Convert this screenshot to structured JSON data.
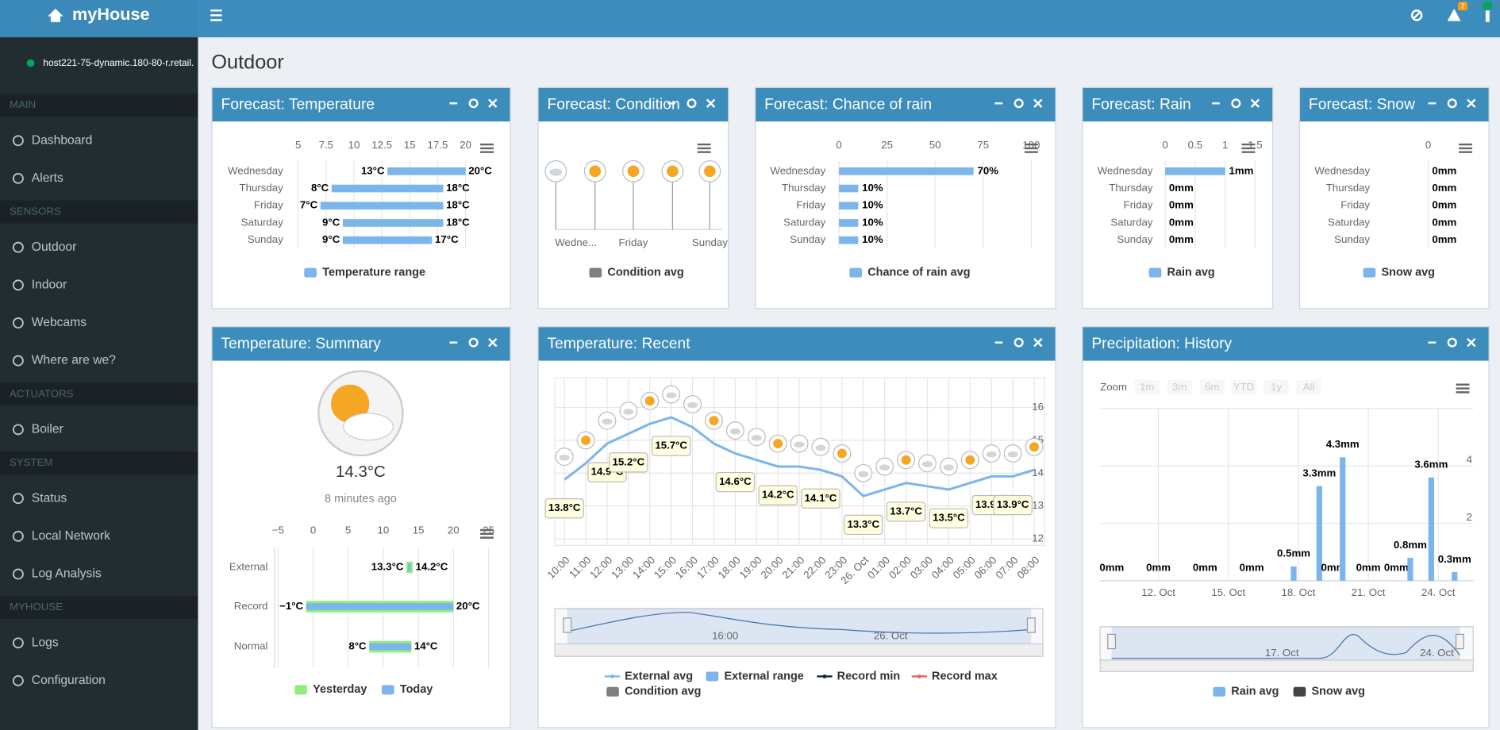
{
  "header": {
    "brand": "myHouse",
    "badge": "7"
  },
  "sidebar": {
    "host": "host221-75-dynamic.180-80-r.retail.",
    "sections": [
      {
        "label": "MAIN",
        "items": [
          "Dashboard",
          "Alerts"
        ]
      },
      {
        "label": "SENSORS",
        "items": [
          "Outdoor",
          "Indoor",
          "Webcams",
          "Where are we?"
        ]
      },
      {
        "label": "ACTUATORS",
        "items": [
          "Boiler"
        ]
      },
      {
        "label": "SYSTEM",
        "items": [
          "Status",
          "Local Network",
          "Log Analysis"
        ]
      },
      {
        "label": "MYHOUSE",
        "items": [
          "Logs",
          "Configuration"
        ]
      }
    ]
  },
  "page": {
    "title": "Outdoor"
  },
  "widgets": [
    {
      "title": "Forecast: Temperature",
      "chart_data": {
        "type": "range-bar",
        "categories": [
          "Wednesday",
          "Thursday",
          "Friday",
          "Saturday",
          "Sunday"
        ],
        "series": [
          {
            "name": "Temperature range",
            "color": "#7cb5ec",
            "low": [
              13,
              8,
              7,
              9,
              9
            ],
            "high": [
              20,
              18,
              18,
              18,
              17
            ],
            "low_labels": [
              "13°C",
              "8°C",
              "7°C",
              "9°C",
              "9°C"
            ],
            "high_labels": [
              "20°C",
              "18°C",
              "18°C",
              "18°C",
              "17°C"
            ]
          }
        ],
        "xlim": [
          4,
          22
        ],
        "xticks": [
          5,
          7.5,
          10,
          12.5,
          15,
          17.5,
          20
        ]
      }
    },
    {
      "title": "Forecast: Condition",
      "chart_data": {
        "type": "condition",
        "categories": [
          "Wedne...",
          null,
          "Friday",
          null,
          "Sunday"
        ],
        "series": [
          {
            "name": "Condition avg",
            "color": "#808080"
          }
        ]
      }
    },
    {
      "title": "Forecast: Chance of rain",
      "chart_data": {
        "type": "bar",
        "categories": [
          "Wednesday",
          "Thursday",
          "Friday",
          "Saturday",
          "Sunday"
        ],
        "series": [
          {
            "name": "Chance of rain avg",
            "color": "#7cb5ec",
            "values": [
              70,
              10,
              10,
              10,
              10
            ],
            "value_labels": [
              "70%",
              "10%",
              "10%",
              "10%",
              "10%"
            ]
          }
        ],
        "xlim": [
          0,
          100
        ],
        "xticks": [
          0,
          25,
          50,
          75,
          100
        ]
      }
    },
    {
      "title": "Forecast: Rain",
      "chart_data": {
        "type": "bar",
        "categories": [
          "Wednesday",
          "Thursday",
          "Friday",
          "Saturday",
          "Sunday"
        ],
        "series": [
          {
            "name": "Rain avg",
            "color": "#7cb5ec",
            "values": [
              1,
              0,
              0,
              0,
              0
            ],
            "value_labels": [
              "1mm",
              "0mm",
              "0mm",
              "0mm",
              "0mm"
            ]
          }
        ],
        "xlim": [
          0,
          1.5
        ],
        "xticks": [
          0,
          0.5,
          1,
          1.5
        ]
      }
    },
    {
      "title": "Forecast: Snow",
      "chart_data": {
        "type": "bar",
        "categories": [
          "Wednesday",
          "Thursday",
          "Friday",
          "Saturday",
          "Sunday"
        ],
        "series": [
          {
            "name": "Snow avg",
            "color": "#7cb5ec",
            "values": [
              0,
              0,
              0,
              0,
              0
            ],
            "value_labels": [
              "0mm",
              "0mm",
              "0mm",
              "0mm",
              "0mm"
            ]
          }
        ],
        "xlim": [
          -1,
          1
        ],
        "xticks": [
          0
        ]
      }
    },
    {
      "title": "Temperature: Summary",
      "current": "14.3°C",
      "updated": "8 minutes ago",
      "chart_data": {
        "type": "range-bar",
        "categories": [
          "External",
          "Record",
          "Normal"
        ],
        "series": [
          {
            "name": "Yesterday",
            "color": "#90ed7d",
            "low": [
              13.3,
              -1,
              8
            ],
            "high": [
              14.2,
              20,
              14
            ],
            "low_labels": [
              "13.3°C",
              "−1°C",
              "8°C"
            ],
            "high_labels": [
              "14.2°C",
              "20°C",
              "14°C"
            ]
          },
          {
            "name": "Today",
            "color": "#7cb5ec",
            "low": [
              13.5,
              -1,
              8
            ],
            "high": [
              13.9,
              20,
              14
            ]
          }
        ],
        "xlim": [
          -5.5,
          25.6
        ],
        "xticks": [
          {
            "value": -5,
            "label": "−5"
          },
          0,
          5,
          10,
          15,
          20,
          25
        ]
      }
    },
    {
      "title": "Temperature: Recent",
      "chart_data": {
        "type": "line",
        "categories": [
          "10:00",
          "11:00",
          "12:00",
          "13:00",
          "14:00",
          "15:00",
          "16:00",
          "17:00",
          "18:00",
          "19:00",
          "20:00",
          "21:00",
          "22:00",
          "23:00",
          "26. Oct",
          "01:00",
          "02:00",
          "03:00",
          "04:00",
          "05:00",
          "06:00",
          "07:00",
          "08:00"
        ],
        "series": [
          {
            "name": "External avg",
            "style": "line",
            "color": "#7cb5ec",
            "values": [
              13.8,
              14.3,
              14.9,
              15.2,
              15.5,
              15.7,
              15.4,
              14.9,
              14.6,
              14.4,
              14.2,
              14.2,
              14.1,
              13.9,
              13.3,
              13.5,
              13.7,
              13.6,
              13.5,
              13.7,
              13.9,
              13.9,
              14.1
            ],
            "value_labels": [
              "13.8°C",
              null,
              "14.9°C",
              "15.2°C",
              null,
              "15.7°C",
              null,
              null,
              "14.6°C",
              null,
              "14.2°C",
              null,
              "14.1°C",
              null,
              "13.3°C",
              null,
              "13.7°C",
              null,
              "13.5°C",
              null,
              "13.9°C",
              "13.9°C",
              null
            ]
          },
          {
            "name": "External range",
            "style": "area",
            "color": "#7cb5ec"
          },
          {
            "name": "Record min",
            "style": "line",
            "color": "#0d233a"
          },
          {
            "name": "Record max",
            "style": "line",
            "color": "#f45b5b"
          },
          {
            "name": "Condition avg",
            "style": "area",
            "color": "#808080"
          }
        ],
        "ylim": [
          11.8,
          16.9
        ],
        "yticks": [
          12,
          13,
          14,
          15,
          16
        ],
        "navigator_labels": [
          "16:00",
          "26. Oct"
        ]
      }
    },
    {
      "title": "Precipitation: History",
      "chart_data": {
        "type": "column",
        "zoom_label": "Zoom",
        "zoom_buttons": [
          "1m",
          "3m",
          "6m",
          "YTD",
          "1y",
          "All"
        ],
        "x": [
          10,
          12,
          14,
          16,
          17.8,
          18.9,
          19.5,
          19.9,
          21,
          22.2,
          22.8,
          23.7,
          24.7
        ],
        "series": [
          {
            "name": "Rain avg",
            "color": "#7cb5ec",
            "values": [
              0,
              0,
              0,
              0,
              0.5,
              3.3,
              0,
              4.3,
              0,
              0,
              0.8,
              3.6,
              0.3
            ],
            "value_labels": [
              "0mm",
              "0mm",
              "0mm",
              "0mm",
              "0.5mm",
              "3.3mm",
              "0mm",
              "4.3mm",
              "0mm",
              "0mm",
              "0.8mm",
              "3.6mm",
              "0.3mm"
            ]
          },
          {
            "name": "Snow avg",
            "color": "#434348"
          }
        ],
        "xlim": [
          9.5,
          25.5
        ],
        "ylim": [
          0,
          6
        ],
        "xticks": [
          {
            "value": 12,
            "label": "12. Oct"
          },
          {
            "value": 15,
            "label": "15. Oct"
          },
          {
            "value": 18,
            "label": "18. Oct"
          },
          {
            "value": 21,
            "label": "21. Oct"
          },
          {
            "value": 24,
            "label": "24. Oct"
          }
        ],
        "yticks": [
          2,
          4
        ],
        "navigator_labels": [
          "17. Oct",
          "24. Oct"
        ]
      }
    }
  ]
}
